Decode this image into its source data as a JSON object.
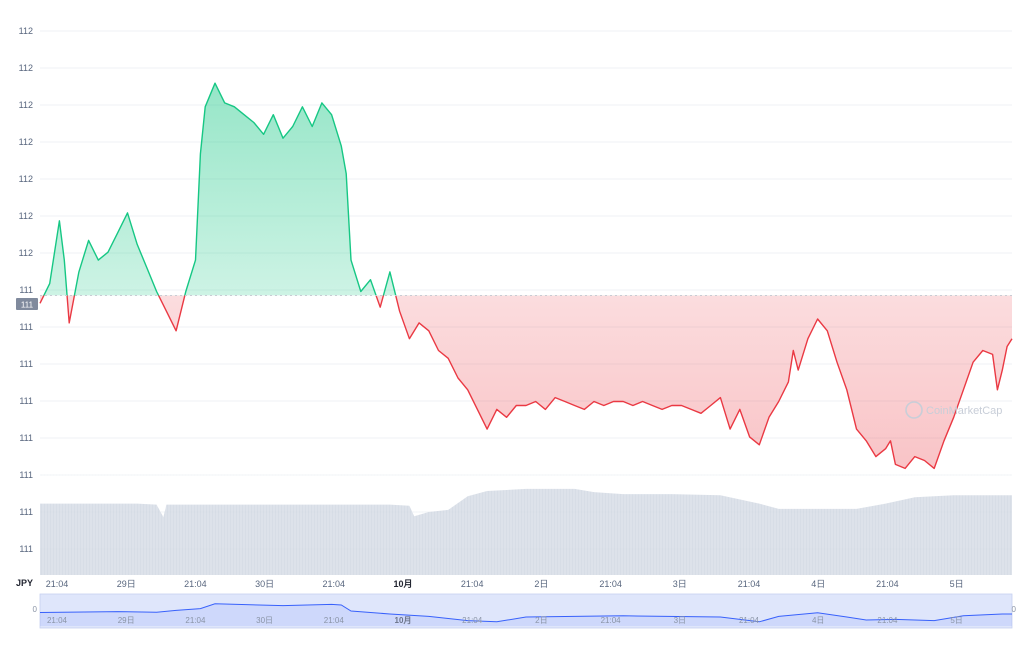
{
  "chart_data": {
    "type": "area",
    "currency": "JPY",
    "y_tick_labels": [
      "112",
      "112",
      "112",
      "112",
      "112",
      "112",
      "112",
      "111",
      "111",
      "111",
      "111",
      "111",
      "111",
      "111",
      "111"
    ],
    "current_price_label": "111",
    "x_tick_labels": [
      "21:04",
      "29日",
      "21:04",
      "30日",
      "21:04",
      "10月",
      "21:04",
      "2日",
      "21:04",
      "3日",
      "21:04",
      "4日",
      "21:04",
      "5日"
    ],
    "x_tick_bold": [
      false,
      false,
      false,
      false,
      false,
      true,
      false,
      false,
      false,
      false,
      false,
      false,
      false,
      false
    ],
    "navigator_tick_labels": [
      "21:04",
      "29日",
      "21:04",
      "30日",
      "21:04",
      "10月",
      "21:04",
      "2日",
      "21:04",
      "3日",
      "21:04",
      "4日",
      "21:04",
      "5日"
    ],
    "navigator_left_label": "0",
    "navigator_right_label": "0",
    "baseline": 111.49,
    "up_color": "#16c784",
    "down_color": "#ea3943",
    "volume_color": "#c9d1de",
    "navigator_color": "#3861fb",
    "price_path": [
      [
        0.0,
        111.47
      ],
      [
        0.01,
        111.52
      ],
      [
        0.02,
        111.68
      ],
      [
        0.025,
        111.58
      ],
      [
        0.03,
        111.42
      ],
      [
        0.04,
        111.55
      ],
      [
        0.05,
        111.63
      ],
      [
        0.06,
        111.58
      ],
      [
        0.07,
        111.6
      ],
      [
        0.08,
        111.65
      ],
      [
        0.09,
        111.7
      ],
      [
        0.1,
        111.62
      ],
      [
        0.11,
        111.56
      ],
      [
        0.12,
        111.5
      ],
      [
        0.13,
        111.45
      ],
      [
        0.14,
        111.4
      ],
      [
        0.15,
        111.5
      ],
      [
        0.16,
        111.58
      ],
      [
        0.165,
        111.85
      ],
      [
        0.17,
        111.97
      ],
      [
        0.18,
        112.03
      ],
      [
        0.19,
        111.98
      ],
      [
        0.2,
        111.97
      ],
      [
        0.21,
        111.95
      ],
      [
        0.22,
        111.93
      ],
      [
        0.23,
        111.9
      ],
      [
        0.24,
        111.95
      ],
      [
        0.25,
        111.89
      ],
      [
        0.26,
        111.92
      ],
      [
        0.27,
        111.97
      ],
      [
        0.28,
        111.92
      ],
      [
        0.29,
        111.98
      ],
      [
        0.3,
        111.95
      ],
      [
        0.31,
        111.87
      ],
      [
        0.315,
        111.8
      ],
      [
        0.32,
        111.58
      ],
      [
        0.33,
        111.5
      ],
      [
        0.34,
        111.53
      ],
      [
        0.35,
        111.46
      ],
      [
        0.36,
        111.55
      ],
      [
        0.37,
        111.45
      ],
      [
        0.38,
        111.38
      ],
      [
        0.39,
        111.42
      ],
      [
        0.4,
        111.4
      ],
      [
        0.41,
        111.35
      ],
      [
        0.42,
        111.33
      ],
      [
        0.43,
        111.28
      ],
      [
        0.44,
        111.25
      ],
      [
        0.45,
        111.2
      ],
      [
        0.46,
        111.15
      ],
      [
        0.47,
        111.2
      ],
      [
        0.48,
        111.18
      ],
      [
        0.49,
        111.21
      ],
      [
        0.5,
        111.21
      ],
      [
        0.51,
        111.22
      ],
      [
        0.52,
        111.2
      ],
      [
        0.53,
        111.23
      ],
      [
        0.54,
        111.22
      ],
      [
        0.55,
        111.21
      ],
      [
        0.56,
        111.2
      ],
      [
        0.57,
        111.22
      ],
      [
        0.58,
        111.21
      ],
      [
        0.59,
        111.22
      ],
      [
        0.6,
        111.22
      ],
      [
        0.61,
        111.21
      ],
      [
        0.62,
        111.22
      ],
      [
        0.63,
        111.21
      ],
      [
        0.64,
        111.2
      ],
      [
        0.65,
        111.21
      ],
      [
        0.66,
        111.21
      ],
      [
        0.67,
        111.2
      ],
      [
        0.68,
        111.19
      ],
      [
        0.69,
        111.21
      ],
      [
        0.7,
        111.23
      ],
      [
        0.71,
        111.15
      ],
      [
        0.72,
        111.2
      ],
      [
        0.73,
        111.13
      ],
      [
        0.74,
        111.11
      ],
      [
        0.75,
        111.18
      ],
      [
        0.76,
        111.22
      ],
      [
        0.77,
        111.27
      ],
      [
        0.775,
        111.35
      ],
      [
        0.78,
        111.3
      ],
      [
        0.79,
        111.38
      ],
      [
        0.8,
        111.43
      ],
      [
        0.81,
        111.4
      ],
      [
        0.82,
        111.32
      ],
      [
        0.83,
        111.25
      ],
      [
        0.84,
        111.15
      ],
      [
        0.85,
        111.12
      ],
      [
        0.86,
        111.08
      ],
      [
        0.87,
        111.1
      ],
      [
        0.875,
        111.12
      ],
      [
        0.88,
        111.06
      ],
      [
        0.89,
        111.05
      ],
      [
        0.9,
        111.08
      ],
      [
        0.91,
        111.07
      ],
      [
        0.92,
        111.05
      ],
      [
        0.93,
        111.12
      ],
      [
        0.94,
        111.18
      ],
      [
        0.95,
        111.25
      ],
      [
        0.96,
        111.32
      ],
      [
        0.97,
        111.35
      ],
      [
        0.98,
        111.34
      ],
      [
        0.985,
        111.25
      ],
      [
        0.99,
        111.3
      ],
      [
        0.995,
        111.36
      ],
      [
        1.0,
        111.38
      ]
    ],
    "volume_path": [
      [
        0.0,
        0.68
      ],
      [
        0.1,
        0.68
      ],
      [
        0.12,
        0.67
      ],
      [
        0.127,
        0.55
      ],
      [
        0.13,
        0.67
      ],
      [
        0.2,
        0.67
      ],
      [
        0.3,
        0.67
      ],
      [
        0.36,
        0.67
      ],
      [
        0.38,
        0.66
      ],
      [
        0.385,
        0.56
      ],
      [
        0.4,
        0.6
      ],
      [
        0.42,
        0.62
      ],
      [
        0.44,
        0.75
      ],
      [
        0.46,
        0.8
      ],
      [
        0.5,
        0.82
      ],
      [
        0.55,
        0.82
      ],
      [
        0.57,
        0.79
      ],
      [
        0.6,
        0.77
      ],
      [
        0.65,
        0.77
      ],
      [
        0.7,
        0.76
      ],
      [
        0.74,
        0.68
      ],
      [
        0.76,
        0.63
      ],
      [
        0.8,
        0.63
      ],
      [
        0.84,
        0.63
      ],
      [
        0.87,
        0.68
      ],
      [
        0.9,
        0.74
      ],
      [
        0.94,
        0.76
      ],
      [
        1.0,
        0.76
      ]
    ],
    "navigator_path": [
      [
        0.0,
        0.55
      ],
      [
        0.08,
        0.52
      ],
      [
        0.12,
        0.54
      ],
      [
        0.14,
        0.48
      ],
      [
        0.165,
        0.42
      ],
      [
        0.18,
        0.26
      ],
      [
        0.25,
        0.32
      ],
      [
        0.3,
        0.28
      ],
      [
        0.31,
        0.3
      ],
      [
        0.32,
        0.5
      ],
      [
        0.36,
        0.6
      ],
      [
        0.4,
        0.68
      ],
      [
        0.44,
        0.82
      ],
      [
        0.47,
        0.86
      ],
      [
        0.5,
        0.7
      ],
      [
        0.6,
        0.66
      ],
      [
        0.7,
        0.7
      ],
      [
        0.74,
        0.86
      ],
      [
        0.76,
        0.68
      ],
      [
        0.8,
        0.56
      ],
      [
        0.83,
        0.7
      ],
      [
        0.85,
        0.8
      ],
      [
        0.88,
        0.78
      ],
      [
        0.92,
        0.82
      ],
      [
        0.95,
        0.66
      ],
      [
        0.99,
        0.6
      ],
      [
        1.0,
        0.6
      ]
    ],
    "watermark_text": "CoinMarketCap"
  }
}
